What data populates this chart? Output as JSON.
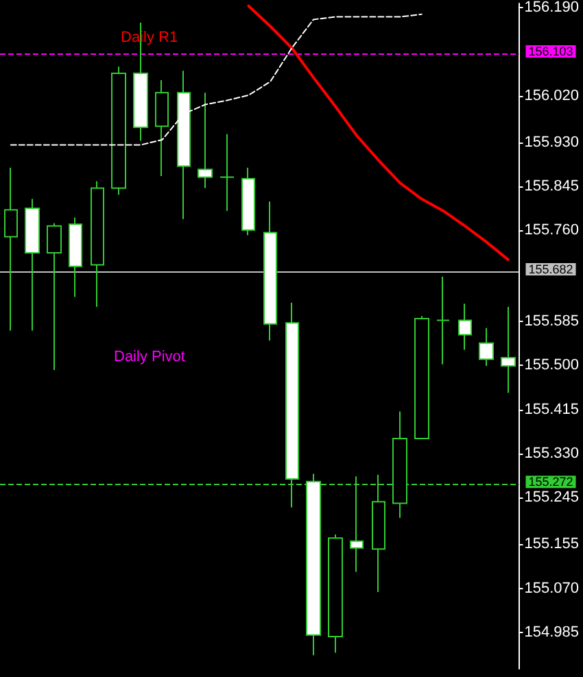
{
  "chart_data": {
    "type": "candlestick",
    "color": "#32cd32",
    "categories": [
      null,
      null,
      null,
      null,
      null,
      null,
      null,
      null,
      null,
      null,
      null,
      null,
      null,
      null,
      null,
      null,
      null,
      null,
      null,
      null,
      null,
      null,
      null,
      null
    ],
    "ohlc": [
      [
        155.748,
        155.881,
        155.567,
        155.8
      ],
      [
        155.803,
        155.821,
        155.567,
        155.717
      ],
      [
        155.717,
        155.774,
        155.491,
        155.769
      ],
      [
        155.772,
        155.785,
        155.632,
        155.691
      ],
      [
        155.694,
        155.855,
        155.613,
        155.842
      ],
      [
        155.842,
        156.076,
        155.829,
        156.063
      ],
      [
        156.063,
        156.161,
        155.933,
        155.959
      ],
      [
        155.961,
        156.05,
        155.865,
        156.026
      ],
      [
        156.026,
        156.068,
        155.782,
        155.884
      ],
      [
        155.878,
        156.026,
        155.842,
        155.863
      ],
      [
        155.863,
        155.946,
        155.798,
        155.863
      ],
      [
        155.86,
        155.881,
        155.751,
        155.761
      ],
      [
        155.756,
        155.816,
        155.548,
        155.58
      ],
      [
        155.582,
        155.621,
        155.226,
        155.281
      ],
      [
        155.276,
        155.291,
        154.941,
        154.98
      ],
      [
        154.977,
        155.174,
        154.946,
        155.167
      ],
      [
        155.161,
        155.286,
        155.102,
        155.148
      ],
      [
        155.146,
        155.289,
        155.063,
        155.237
      ],
      [
        155.234,
        155.411,
        155.206,
        155.359
      ],
      [
        155.359,
        155.595,
        155.359,
        155.59
      ],
      [
        155.587,
        155.671,
        155.502,
        155.587
      ],
      [
        155.587,
        155.619,
        155.53,
        155.559
      ],
      [
        155.543,
        155.572,
        155.499,
        155.512
      ],
      [
        155.515,
        155.613,
        155.447,
        155.499
      ]
    ],
    "series": [
      {
        "type": "line",
        "color": "#ff0000",
        "values": [
          null,
          null,
          null,
          null,
          null,
          null,
          null,
          null,
          null,
          null,
          null,
          156.193,
          156.154,
          156.112,
          156.055,
          156.0,
          155.943,
          155.896,
          155.852,
          155.821,
          155.798,
          155.769,
          155.738,
          155.704
        ]
      },
      {
        "type": "line",
        "color": "#ffffff",
        "line_style": "dashed",
        "values": [
          155.925,
          155.925,
          155.925,
          155.925,
          155.925,
          155.925,
          155.925,
          155.935,
          155.985,
          156.003,
          156.011,
          156.021,
          156.047,
          156.112,
          156.167,
          156.172,
          156.172,
          156.172,
          156.172,
          156.177,
          null,
          null,
          null,
          null
        ]
      }
    ],
    "ylim": [
      154.915,
      156.198
    ],
    "yticks": [
      {
        "value": 156.19,
        "label": "156.190"
      },
      {
        "value": 156.02,
        "label": "156.020"
      },
      {
        "value": 155.93,
        "label": "155.930"
      },
      {
        "value": 155.845,
        "label": "155.845"
      },
      {
        "value": 155.76,
        "label": "155.760"
      },
      {
        "value": 155.585,
        "label": "155.585"
      },
      {
        "value": 155.5,
        "label": "155.500"
      },
      {
        "value": 155.415,
        "label": "155.415"
      },
      {
        "value": 155.33,
        "label": "155.330"
      },
      {
        "value": 155.245,
        "label": "155.245"
      },
      {
        "value": 155.155,
        "label": "155.155"
      },
      {
        "value": 155.07,
        "label": "155.070"
      },
      {
        "value": 154.985,
        "label": "154.985"
      }
    ],
    "ref_lines": [
      {
        "axis": "y",
        "value": 156.103,
        "label": "156.103",
        "color": "#ff00ff",
        "line_style": "dashed"
      },
      {
        "axis": "y",
        "value": 155.682,
        "label": "155.682",
        "color": "#c0c0c0",
        "line_style": "solid"
      },
      {
        "axis": "y",
        "value": 155.272,
        "label": "155.272",
        "color": "#32cd32",
        "line_style": "dashed"
      }
    ],
    "annotations": [
      "Daily R1",
      "Daily Pivot"
    ],
    "grid": false,
    "tick_labels": "y"
  }
}
